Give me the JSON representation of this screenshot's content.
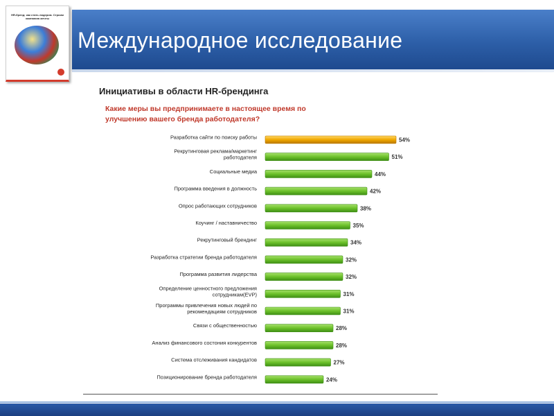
{
  "slide": {
    "title": "Международное исследование"
  },
  "cover": {
    "title": "HR-бренд: как стать лидером. Строим компанию мечты"
  },
  "chart_data": {
    "type": "bar",
    "orientation": "horizontal",
    "title": "Инициативы в области HR-брендинга",
    "subtitle": "Какие меры вы предпринимаете в настоящее время по улучшению вашего бренда работодателя?",
    "categories": [
      "Разработка сайти по поиску работы",
      "Рекрутинговая реклама/маркетинг работодателя",
      "Социальные медиа",
      "Программа введения в должность",
      "Опрос работающих сотрудников",
      "Коучинг / наставничество",
      "Рекрутинговый брендинг",
      "Разработка стратегии бренда работодателя",
      "Программа развития лидерства",
      "Определение ценностного предложения сотрудникам(EVP)",
      "Программы привлечения новых людей по рекомендациям сотрудников",
      "Связи с общественностью",
      "Анализ финансового состония конкурентов",
      "Система отслеживания кандидатов",
      "Позиционирование бренда работодателя"
    ],
    "values": [
      54,
      51,
      44,
      42,
      38,
      35,
      34,
      32,
      32,
      31,
      31,
      28,
      28,
      27,
      24
    ],
    "value_labels": [
      "54%",
      "51%",
      "44%",
      "42%",
      "38%",
      "35%",
      "34%",
      "32%",
      "32%",
      "31%",
      "31%",
      "28%",
      "28%",
      "27%",
      "24%"
    ],
    "highlight_index": 0,
    "xlim": [
      0,
      54
    ],
    "colors": {
      "highlight": "#f0a800",
      "bar": "#6cc12a"
    }
  }
}
